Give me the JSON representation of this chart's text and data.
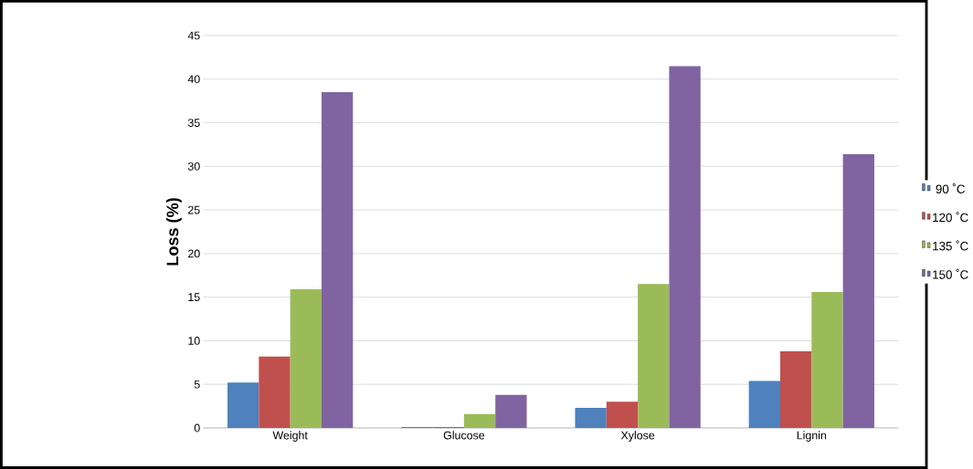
{
  "chart_data": {
    "type": "bar",
    "ylabel": "**Loss (%)**",
    "categories": [
      "Weight",
      "Glucose",
      "Xylose",
      "Lignin"
    ],
    "series": [
      {
        "name": "90 ˚C",
        "color": "#4f81bd",
        "values": [
          5.2,
          0.1,
          2.3,
          5.4
        ]
      },
      {
        "name": "120 ˚C",
        "color": "#c0504d",
        "values": [
          8.2,
          0.1,
          3.0,
          8.8
        ]
      },
      {
        "name": "135 ˚C",
        "color": "#9bbb59",
        "values": [
          15.9,
          1.6,
          16.5,
          15.6
        ]
      },
      {
        "name": "150 ˚C",
        "color": "#8064a2",
        "values": [
          38.5,
          3.8,
          41.5,
          31.4
        ]
      }
    ],
    "ylim": [
      0,
      45
    ],
    "yticks": [
      0,
      5,
      10,
      15,
      20,
      25,
      30,
      35,
      40,
      45
    ],
    "grid": "y",
    "legend": "right"
  }
}
